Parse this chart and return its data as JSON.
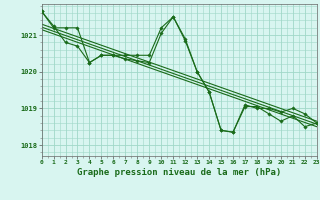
{
  "background_color": "#d8f5f0",
  "grid_color": "#a0d8c8",
  "line_color": "#1a6b1a",
  "marker_color": "#1a6b1a",
  "xlabel": "Graphe pression niveau de la mer (hPa)",
  "xlabel_fontsize": 6.5,
  "xlim": [
    0,
    23
  ],
  "ylim": [
    1017.7,
    1021.85
  ],
  "yticks": [
    1018,
    1019,
    1020,
    1021
  ],
  "xticks": [
    0,
    1,
    2,
    3,
    4,
    5,
    6,
    7,
    8,
    9,
    10,
    11,
    12,
    13,
    14,
    15,
    16,
    17,
    18,
    19,
    20,
    21,
    22,
    23
  ],
  "series1_x": [
    0,
    1,
    2,
    3,
    4,
    5,
    6,
    7,
    8,
    9,
    10,
    11,
    12,
    13,
    14,
    15,
    16,
    17,
    18,
    19,
    20,
    21,
    22,
    23
  ],
  "series1_y": [
    1021.65,
    1021.25,
    1020.8,
    1020.7,
    1020.25,
    1020.45,
    1020.45,
    1020.35,
    1020.3,
    1020.25,
    1021.05,
    1021.5,
    1020.85,
    1020.0,
    1019.45,
    1018.4,
    1018.35,
    1019.05,
    1019.05,
    1018.85,
    1018.65,
    1018.8,
    1018.5,
    1018.6
  ],
  "series2_x": [
    0,
    1,
    2,
    3,
    4,
    5,
    6,
    7,
    8,
    9,
    10,
    11,
    12,
    13,
    14,
    15,
    16,
    17,
    18,
    19,
    20,
    21,
    22,
    23
  ],
  "series2_y": [
    1021.65,
    1021.2,
    1021.2,
    1021.2,
    1020.25,
    1020.45,
    1020.45,
    1020.45,
    1020.45,
    1020.45,
    1021.2,
    1021.5,
    1020.9,
    1020.0,
    1019.45,
    1018.4,
    1018.35,
    1019.1,
    1019.0,
    1019.0,
    1018.9,
    1019.0,
    1018.85,
    1018.6
  ],
  "trend_x": [
    0,
    23
  ],
  "trend_y": [
    1021.3,
    1018.65
  ],
  "trend2_x": [
    0,
    23
  ],
  "trend2_y": [
    1021.15,
    1018.5
  ],
  "trend3_x": [
    0,
    23
  ],
  "trend3_y": [
    1021.22,
    1018.57
  ]
}
